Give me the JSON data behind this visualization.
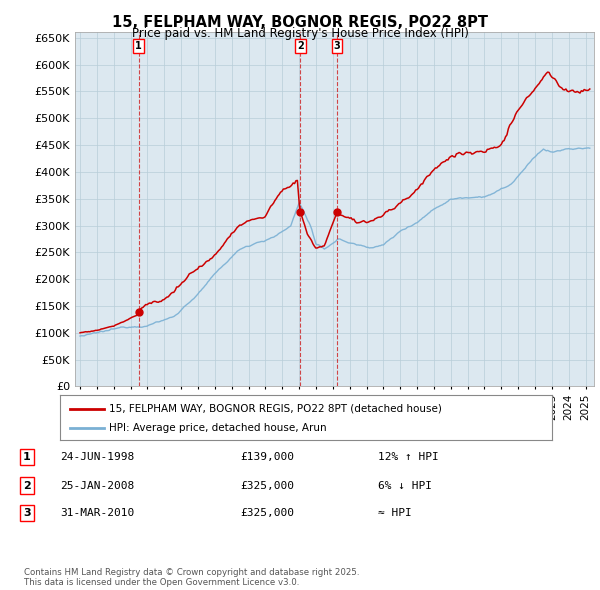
{
  "title": "15, FELPHAM WAY, BOGNOR REGIS, PO22 8PT",
  "subtitle": "Price paid vs. HM Land Registry's House Price Index (HPI)",
  "legend_line1": "15, FELPHAM WAY, BOGNOR REGIS, PO22 8PT (detached house)",
  "legend_line2": "HPI: Average price, detached house, Arun",
  "sale_color": "#cc0000",
  "hpi_color": "#7ab0d4",
  "vline_color": "#cc0000",
  "chart_bg": "#dce8f0",
  "fig_bg": "#ffffff",
  "grid_color": "#b8cdd8",
  "ylim": [
    0,
    660000
  ],
  "yticks": [
    0,
    50000,
    100000,
    150000,
    200000,
    250000,
    300000,
    350000,
    400000,
    450000,
    500000,
    550000,
    600000,
    650000
  ],
  "xlim_start": 1994.7,
  "xlim_end": 2025.5,
  "transactions": [
    {
      "date_x": 1998.48,
      "price": 139000,
      "label": "1"
    },
    {
      "date_x": 2008.07,
      "price": 325000,
      "label": "2"
    },
    {
      "date_x": 2010.25,
      "price": 325000,
      "label": "3"
    }
  ],
  "table_rows": [
    {
      "num": "1",
      "date": "24-JUN-1998",
      "price": "£139,000",
      "hpi_note": "12% ↑ HPI"
    },
    {
      "num": "2",
      "date": "25-JAN-2008",
      "price": "£325,000",
      "hpi_note": "6% ↓ HPI"
    },
    {
      "num": "3",
      "date": "31-MAR-2010",
      "price": "£325,000",
      "hpi_note": "≈ HPI"
    }
  ],
  "footer": "Contains HM Land Registry data © Crown copyright and database right 2025.\nThis data is licensed under the Open Government Licence v3.0."
}
